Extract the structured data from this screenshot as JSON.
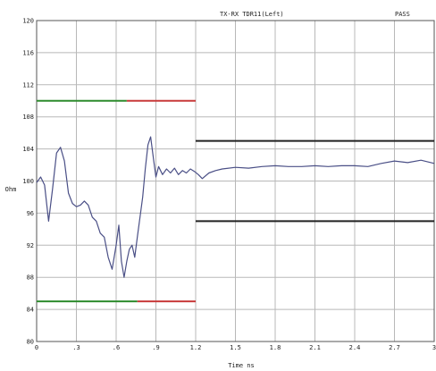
{
  "colors": {
    "curve": "#4a4f86",
    "grid": "#b8b8b8",
    "frame": "#555555",
    "limit_green": "#2e8b2e",
    "limit_red": "#c83a3a",
    "limit_black": "#222222"
  },
  "chart_data": {
    "type": "line",
    "title": "TX-RX TDR11(Left)",
    "status": "PASS",
    "xlabel": "Time ns",
    "ylabel": "Ohm",
    "xlim": [
      0,
      3
    ],
    "ylim": [
      80,
      120
    ],
    "grid": true,
    "x_ticks": [
      0,
      0.3,
      0.6,
      0.9,
      1.2,
      1.5,
      1.8,
      2.1,
      2.4,
      2.7,
      3
    ],
    "x_tick_labels": [
      "0",
      ".3",
      ".6",
      ".9",
      "1.2",
      "1.5",
      "1.8",
      "2.1",
      "2.4",
      "2.7",
      "3"
    ],
    "y_ticks": [
      80,
      84,
      88,
      92,
      96,
      100,
      104,
      108,
      112,
      116,
      120
    ],
    "y_tick_labels": [
      "80",
      "84",
      "88",
      "92",
      "96",
      "100",
      "104",
      "108",
      "112",
      "116",
      "120"
    ],
    "limit_lines": [
      {
        "x": [
          0,
          0.68
        ],
        "y": 110,
        "color": "limit_green"
      },
      {
        "x": [
          0.68,
          1.2
        ],
        "y": 110,
        "color": "limit_red"
      },
      {
        "x": [
          0,
          0.76
        ],
        "y": 85,
        "color": "limit_green"
      },
      {
        "x": [
          0.76,
          1.2
        ],
        "y": 85,
        "color": "limit_red"
      },
      {
        "x": [
          1.2,
          3
        ],
        "y": 105,
        "color": "limit_black"
      },
      {
        "x": [
          1.2,
          3
        ],
        "y": 95,
        "color": "limit_black"
      }
    ],
    "series": [
      {
        "x": [
          0,
          0.03,
          0.06,
          0.09,
          0.12,
          0.15,
          0.18,
          0.21,
          0.24,
          0.27,
          0.3,
          0.33,
          0.36,
          0.39,
          0.42,
          0.45,
          0.48,
          0.51,
          0.54,
          0.57,
          0.6,
          0.62,
          0.64,
          0.66,
          0.68,
          0.7,
          0.72,
          0.74,
          0.76,
          0.78,
          0.8,
          0.82,
          0.84,
          0.86,
          0.88,
          0.9,
          0.92,
          0.95,
          0.98,
          1.01,
          1.04,
          1.07,
          1.1,
          1.13,
          1.16,
          1.19,
          1.22,
          1.25,
          1.3,
          1.35,
          1.4,
          1.5,
          1.6,
          1.7,
          1.8,
          1.9,
          2.0,
          2.1,
          2.2,
          2.3,
          2.4,
          2.5,
          2.6,
          2.7,
          2.8,
          2.9,
          3.0
        ],
        "y": [
          99.8,
          100.5,
          99.5,
          95.0,
          99.0,
          103.5,
          104.2,
          102.5,
          98.5,
          97.2,
          96.8,
          97.0,
          97.5,
          97.0,
          95.5,
          95.0,
          93.5,
          93.0,
          90.5,
          89.0,
          92.0,
          94.5,
          90.0,
          88.0,
          90.0,
          91.5,
          92.0,
          90.5,
          93.0,
          95.5,
          98.0,
          101.5,
          104.5,
          105.5,
          103.0,
          100.5,
          101.8,
          100.8,
          101.5,
          101.0,
          101.6,
          100.8,
          101.3,
          101.0,
          101.5,
          101.2,
          100.8,
          100.3,
          101.0,
          101.3,
          101.5,
          101.7,
          101.6,
          101.8,
          101.9,
          101.8,
          101.8,
          101.9,
          101.8,
          101.9,
          101.9,
          101.8,
          102.2,
          102.5,
          102.3,
          102.6,
          102.2
        ]
      }
    ]
  }
}
